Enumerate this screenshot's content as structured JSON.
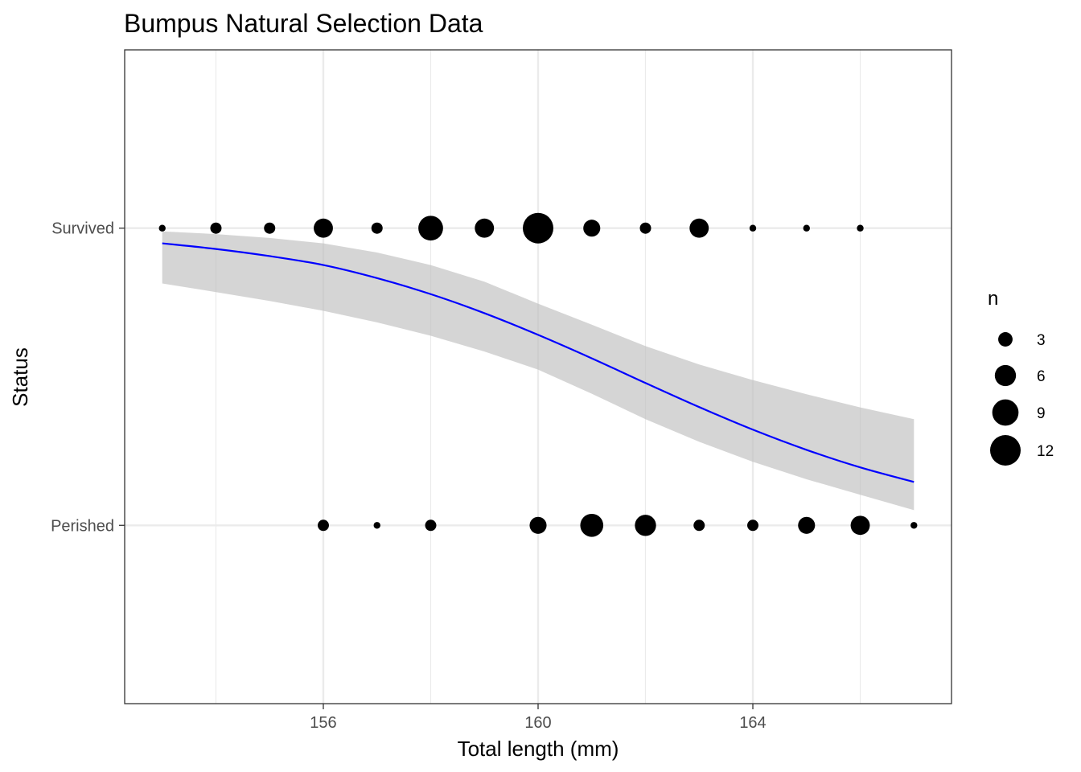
{
  "chart_data": {
    "type": "scatter",
    "title": "Bumpus Natural Selection Data",
    "xlabel": "Total length (mm)",
    "ylabel": "Status",
    "xlim": [
      152.3,
      167.7
    ],
    "ylim": [
      -0.6,
      1.6
    ],
    "x_ticks": [
      156,
      160,
      164
    ],
    "x_minor_ticks": [
      154,
      158,
      162,
      166
    ],
    "y_categories": [
      {
        "label": "Perished",
        "value": 0
      },
      {
        "label": "Survived",
        "value": 1
      }
    ],
    "grid": true,
    "colors": {
      "points": "#000000",
      "fit_line": "#0000ff",
      "ci_band": "#bebebe",
      "grid": "#ebebeb",
      "panel_border": "#333333"
    },
    "series": [
      {
        "name": "Survived",
        "y": 1,
        "points": [
          {
            "x": 153,
            "n": 1
          },
          {
            "x": 154,
            "n": 2
          },
          {
            "x": 155,
            "n": 2
          },
          {
            "x": 156,
            "n": 5
          },
          {
            "x": 157,
            "n": 2
          },
          {
            "x": 158,
            "n": 8
          },
          {
            "x": 159,
            "n": 5
          },
          {
            "x": 160,
            "n": 12
          },
          {
            "x": 161,
            "n": 4
          },
          {
            "x": 162,
            "n": 2
          },
          {
            "x": 163,
            "n": 5
          },
          {
            "x": 164,
            "n": 1
          },
          {
            "x": 165,
            "n": 1
          },
          {
            "x": 166,
            "n": 1
          }
        ]
      },
      {
        "name": "Perished",
        "y": 0,
        "points": [
          {
            "x": 156,
            "n": 2
          },
          {
            "x": 157,
            "n": 1
          },
          {
            "x": 158,
            "n": 2
          },
          {
            "x": 160,
            "n": 4
          },
          {
            "x": 161,
            "n": 7
          },
          {
            "x": 162,
            "n": 6
          },
          {
            "x": 163,
            "n": 2
          },
          {
            "x": 164,
            "n": 2
          },
          {
            "x": 165,
            "n": 4
          },
          {
            "x": 166,
            "n": 5
          },
          {
            "x": 167,
            "n": 1
          }
        ]
      }
    ],
    "logistic_fit": {
      "x": [
        153,
        154,
        155,
        156,
        157,
        158,
        159,
        160,
        161,
        162,
        163,
        164,
        165,
        166,
        167
      ],
      "fit": [
        0.949,
        0.93,
        0.906,
        0.876,
        0.832,
        0.778,
        0.714,
        0.641,
        0.562,
        0.479,
        0.398,
        0.322,
        0.254,
        0.195,
        0.146
      ],
      "upper": [
        0.989,
        0.98,
        0.967,
        0.949,
        0.918,
        0.876,
        0.82,
        0.746,
        0.675,
        0.603,
        0.541,
        0.489,
        0.441,
        0.397,
        0.357
      ],
      "lower": [
        0.814,
        0.785,
        0.755,
        0.722,
        0.683,
        0.638,
        0.585,
        0.524,
        0.443,
        0.357,
        0.281,
        0.214,
        0.155,
        0.103,
        0.051
      ]
    },
    "legend": {
      "title": "n",
      "position": "right",
      "entries": [
        {
          "label": "3",
          "n": 3
        },
        {
          "label": "6",
          "n": 6
        },
        {
          "label": "9",
          "n": 9
        },
        {
          "label": "12",
          "n": 12
        }
      ]
    },
    "size_scale": {
      "n_min": 1,
      "n_max": 12
    }
  }
}
